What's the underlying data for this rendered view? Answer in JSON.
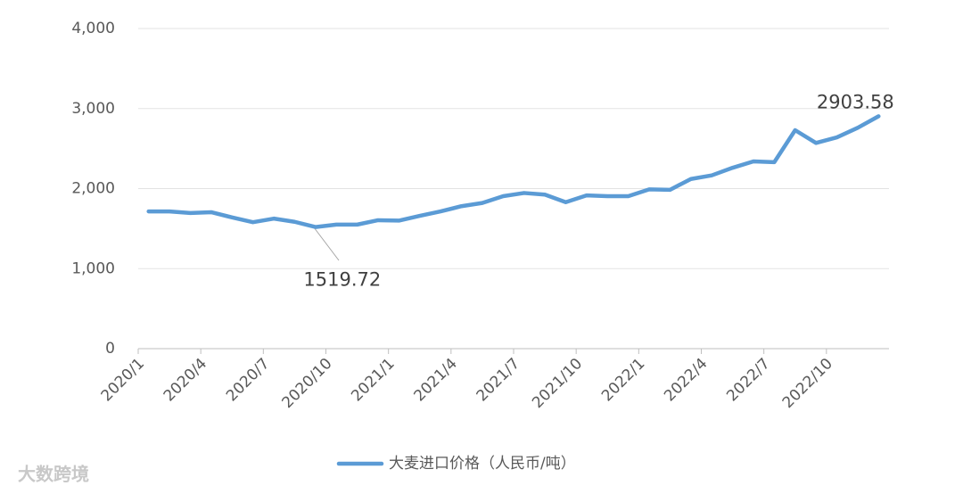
{
  "chart_data": {
    "type": "line",
    "categories": [
      "2020/1",
      null,
      null,
      "2020/4",
      null,
      null,
      "2020/7",
      null,
      null,
      "2020/10",
      null,
      null,
      "2021/1",
      null,
      null,
      "2021/4",
      null,
      null,
      "2021/7",
      null,
      null,
      "2021/10",
      null,
      null,
      "2022/1",
      null,
      null,
      "2022/4",
      null,
      null,
      "2022/7",
      null,
      null,
      "2022/10",
      null,
      null
    ],
    "series": [
      {
        "name": "大麦进口价格（人民币/吨）",
        "color": "#5b9bd5",
        "values": [
          1715,
          1715,
          1695,
          1705,
          1640,
          1580,
          1625,
          1585,
          1519.72,
          1550,
          1550,
          1605,
          1600,
          1660,
          1715,
          1780,
          1820,
          1905,
          1945,
          1925,
          1830,
          1915,
          1905,
          1905,
          1990,
          1985,
          2120,
          2165,
          2260,
          2340,
          2330,
          2730,
          2570,
          2640,
          2760,
          2903.58
        ]
      }
    ],
    "ylim": [
      0,
      4000
    ],
    "yticks": [
      0,
      {
        "value": 1000,
        "label": "1,000"
      },
      {
        "value": 2000,
        "label": "2,000"
      },
      {
        "value": 3000,
        "label": "3,000"
      },
      {
        "value": 4000,
        "label": "4,000"
      }
    ],
    "grid": true,
    "legend": "bottom",
    "watermark": "大数跨境"
  }
}
